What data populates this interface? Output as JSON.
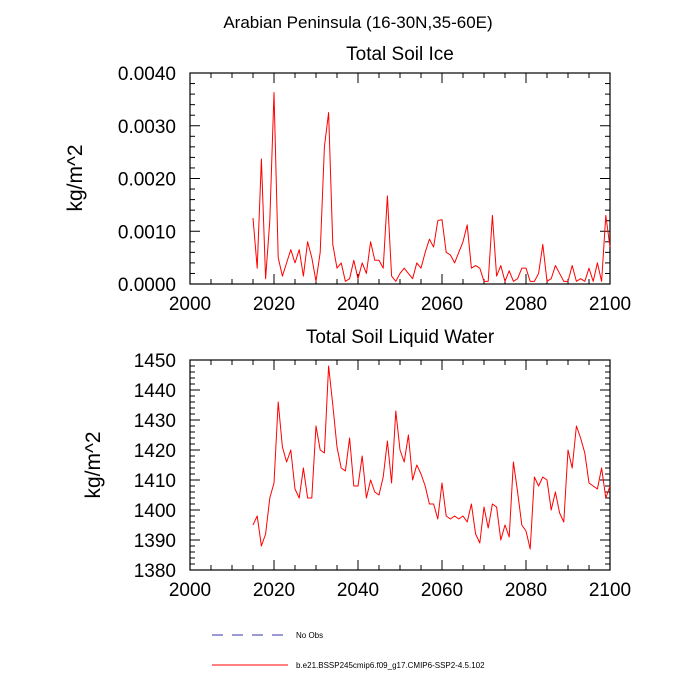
{
  "figure": {
    "title": "Arabian Peninsula (16-30N,35-60E)"
  },
  "legend": {
    "placement": "bottom",
    "entries": [
      {
        "label": "No Obs",
        "color": "#3333aa",
        "dash": "dashed"
      },
      {
        "label": "b.e21.BSSP245cmip6.f09_g17.CMIP6-SSP2-4.5.102",
        "color": "#ff0000",
        "dash": "solid"
      }
    ]
  },
  "chart_data": [
    {
      "type": "line",
      "title": "Total Soil Ice",
      "xlabel": "",
      "ylabel": "kg/m^2",
      "xlim": [
        2000,
        2100
      ],
      "ylim": [
        0,
        0.004
      ],
      "xticks": [
        2000,
        2020,
        2040,
        2060,
        2080,
        2100
      ],
      "xtick_labels": [
        "2000",
        "2020",
        "2040",
        "2060",
        "2080",
        "2100"
      ],
      "yticks": [
        0,
        0.001,
        0.002,
        0.003,
        0.004
      ],
      "ytick_labels": [
        "0.0000",
        "0.0010",
        "0.0020",
        "0.0030",
        "0.0040"
      ],
      "grid": false,
      "x": [
        2015,
        2016,
        2017,
        2018,
        2019,
        2020,
        2021,
        2022,
        2023,
        2024,
        2025,
        2026,
        2027,
        2028,
        2029,
        2030,
        2031,
        2032,
        2033,
        2034,
        2035,
        2036,
        2037,
        2038,
        2039,
        2040,
        2041,
        2042,
        2043,
        2044,
        2045,
        2046,
        2047,
        2048,
        2049,
        2050,
        2051,
        2052,
        2053,
        2054,
        2055,
        2056,
        2057,
        2058,
        2059,
        2060,
        2061,
        2062,
        2063,
        2064,
        2065,
        2066,
        2067,
        2068,
        2069,
        2070,
        2071,
        2072,
        2073,
        2074,
        2075,
        2076,
        2077,
        2078,
        2079,
        2080,
        2081,
        2082,
        2083,
        2084,
        2085,
        2086,
        2087,
        2088,
        2089,
        2090,
        2091,
        2092,
        2093,
        2094,
        2095,
        2096,
        2097,
        2098,
        2099,
        2100
      ],
      "series": [
        {
          "color": "#ff0000",
          "values": [
            0.00125,
            0.0003,
            0.00237,
            0.0001,
            0.0012,
            0.00363,
            0.0005,
            0.00015,
            0.0004,
            0.00065,
            0.0004,
            0.00065,
            0.00015,
            0.0008,
            0.0005,
            5e-05,
            0.0006,
            0.0026,
            0.00325,
            0.00075,
            0.0003,
            0.0004,
            5e-05,
            0.0001,
            0.00045,
            0.0001,
            0.0004,
            0.0002,
            0.0008,
            0.00045,
            0.00045,
            0.0003,
            0.00167,
            0.00015,
            5e-05,
            0.0002,
            0.0003,
            0.0002,
            0.0001,
            0.0004,
            0.0003,
            0.0006,
            0.00085,
            0.0007,
            0.0012,
            0.00122,
            0.0006,
            0.00055,
            0.0004,
            0.0006,
            0.0008,
            0.00112,
            0.0003,
            0.00035,
            0.0003,
            5e-05,
            5e-05,
            0.0013,
            0.00015,
            0.00035,
            5e-05,
            0.00025,
            5e-05,
            0.0001,
            0.0003,
            0.0003,
            5e-05,
            5e-05,
            0.0002,
            0.00075,
            5e-05,
            0.0001,
            0.00035,
            0.0002,
            5e-05,
            5e-05,
            0.00035,
            5e-05,
            0.0001,
            5e-05,
            0.0003,
            5e-05,
            0.0004,
            5e-05,
            0.0013,
            0.0007
          ]
        }
      ]
    },
    {
      "type": "line",
      "title": "Total Soil Liquid Water",
      "xlabel": "",
      "ylabel": "kg/m^2",
      "xlim": [
        2000,
        2100
      ],
      "ylim": [
        1380,
        1450
      ],
      "xticks": [
        2000,
        2020,
        2040,
        2060,
        2080,
        2100
      ],
      "xtick_labels": [
        "2000",
        "2020",
        "2040",
        "2060",
        "2080",
        "2100"
      ],
      "yticks": [
        1380,
        1390,
        1400,
        1410,
        1420,
        1430,
        1440,
        1450
      ],
      "ytick_labels": [
        "1380",
        "1390",
        "1400",
        "1410",
        "1420",
        "1430",
        "1440",
        "1450"
      ],
      "grid": false,
      "x": [
        2015,
        2016,
        2017,
        2018,
        2019,
        2020,
        2021,
        2022,
        2023,
        2024,
        2025,
        2026,
        2027,
        2028,
        2029,
        2030,
        2031,
        2032,
        2033,
        2034,
        2035,
        2036,
        2037,
        2038,
        2039,
        2040,
        2041,
        2042,
        2043,
        2044,
        2045,
        2046,
        2047,
        2048,
        2049,
        2050,
        2051,
        2052,
        2053,
        2054,
        2055,
        2056,
        2057,
        2058,
        2059,
        2060,
        2061,
        2062,
        2063,
        2064,
        2065,
        2066,
        2067,
        2068,
        2069,
        2070,
        2071,
        2072,
        2073,
        2074,
        2075,
        2076,
        2077,
        2078,
        2079,
        2080,
        2081,
        2082,
        2083,
        2084,
        2085,
        2086,
        2087,
        2088,
        2089,
        2090,
        2091,
        2092,
        2093,
        2094,
        2095,
        2096,
        2097,
        2098,
        2099,
        2100
      ],
      "series": [
        {
          "color": "#ff0000",
          "values": [
            1395,
            1398,
            1388,
            1392,
            1404,
            1409,
            1436,
            1421,
            1416,
            1420,
            1407,
            1404,
            1414,
            1404,
            1404,
            1428,
            1420,
            1419,
            1448,
            1435,
            1421,
            1414,
            1413,
            1424,
            1408,
            1408,
            1418,
            1404,
            1410,
            1406,
            1405,
            1411,
            1423,
            1409,
            1433,
            1420,
            1416,
            1425,
            1410,
            1415,
            1412,
            1408,
            1402,
            1402,
            1397,
            1409,
            1398,
            1397,
            1398,
            1397,
            1398,
            1396,
            1402,
            1392,
            1389,
            1401,
            1394,
            1402,
            1401,
            1390,
            1395,
            1391,
            1416,
            1406,
            1395,
            1393,
            1387,
            1411,
            1408,
            1411,
            1410,
            1400,
            1406,
            1399,
            1396,
            1420,
            1414,
            1428,
            1424,
            1419,
            1409,
            1408,
            1407,
            1414,
            1404,
            1408
          ]
        }
      ]
    }
  ]
}
